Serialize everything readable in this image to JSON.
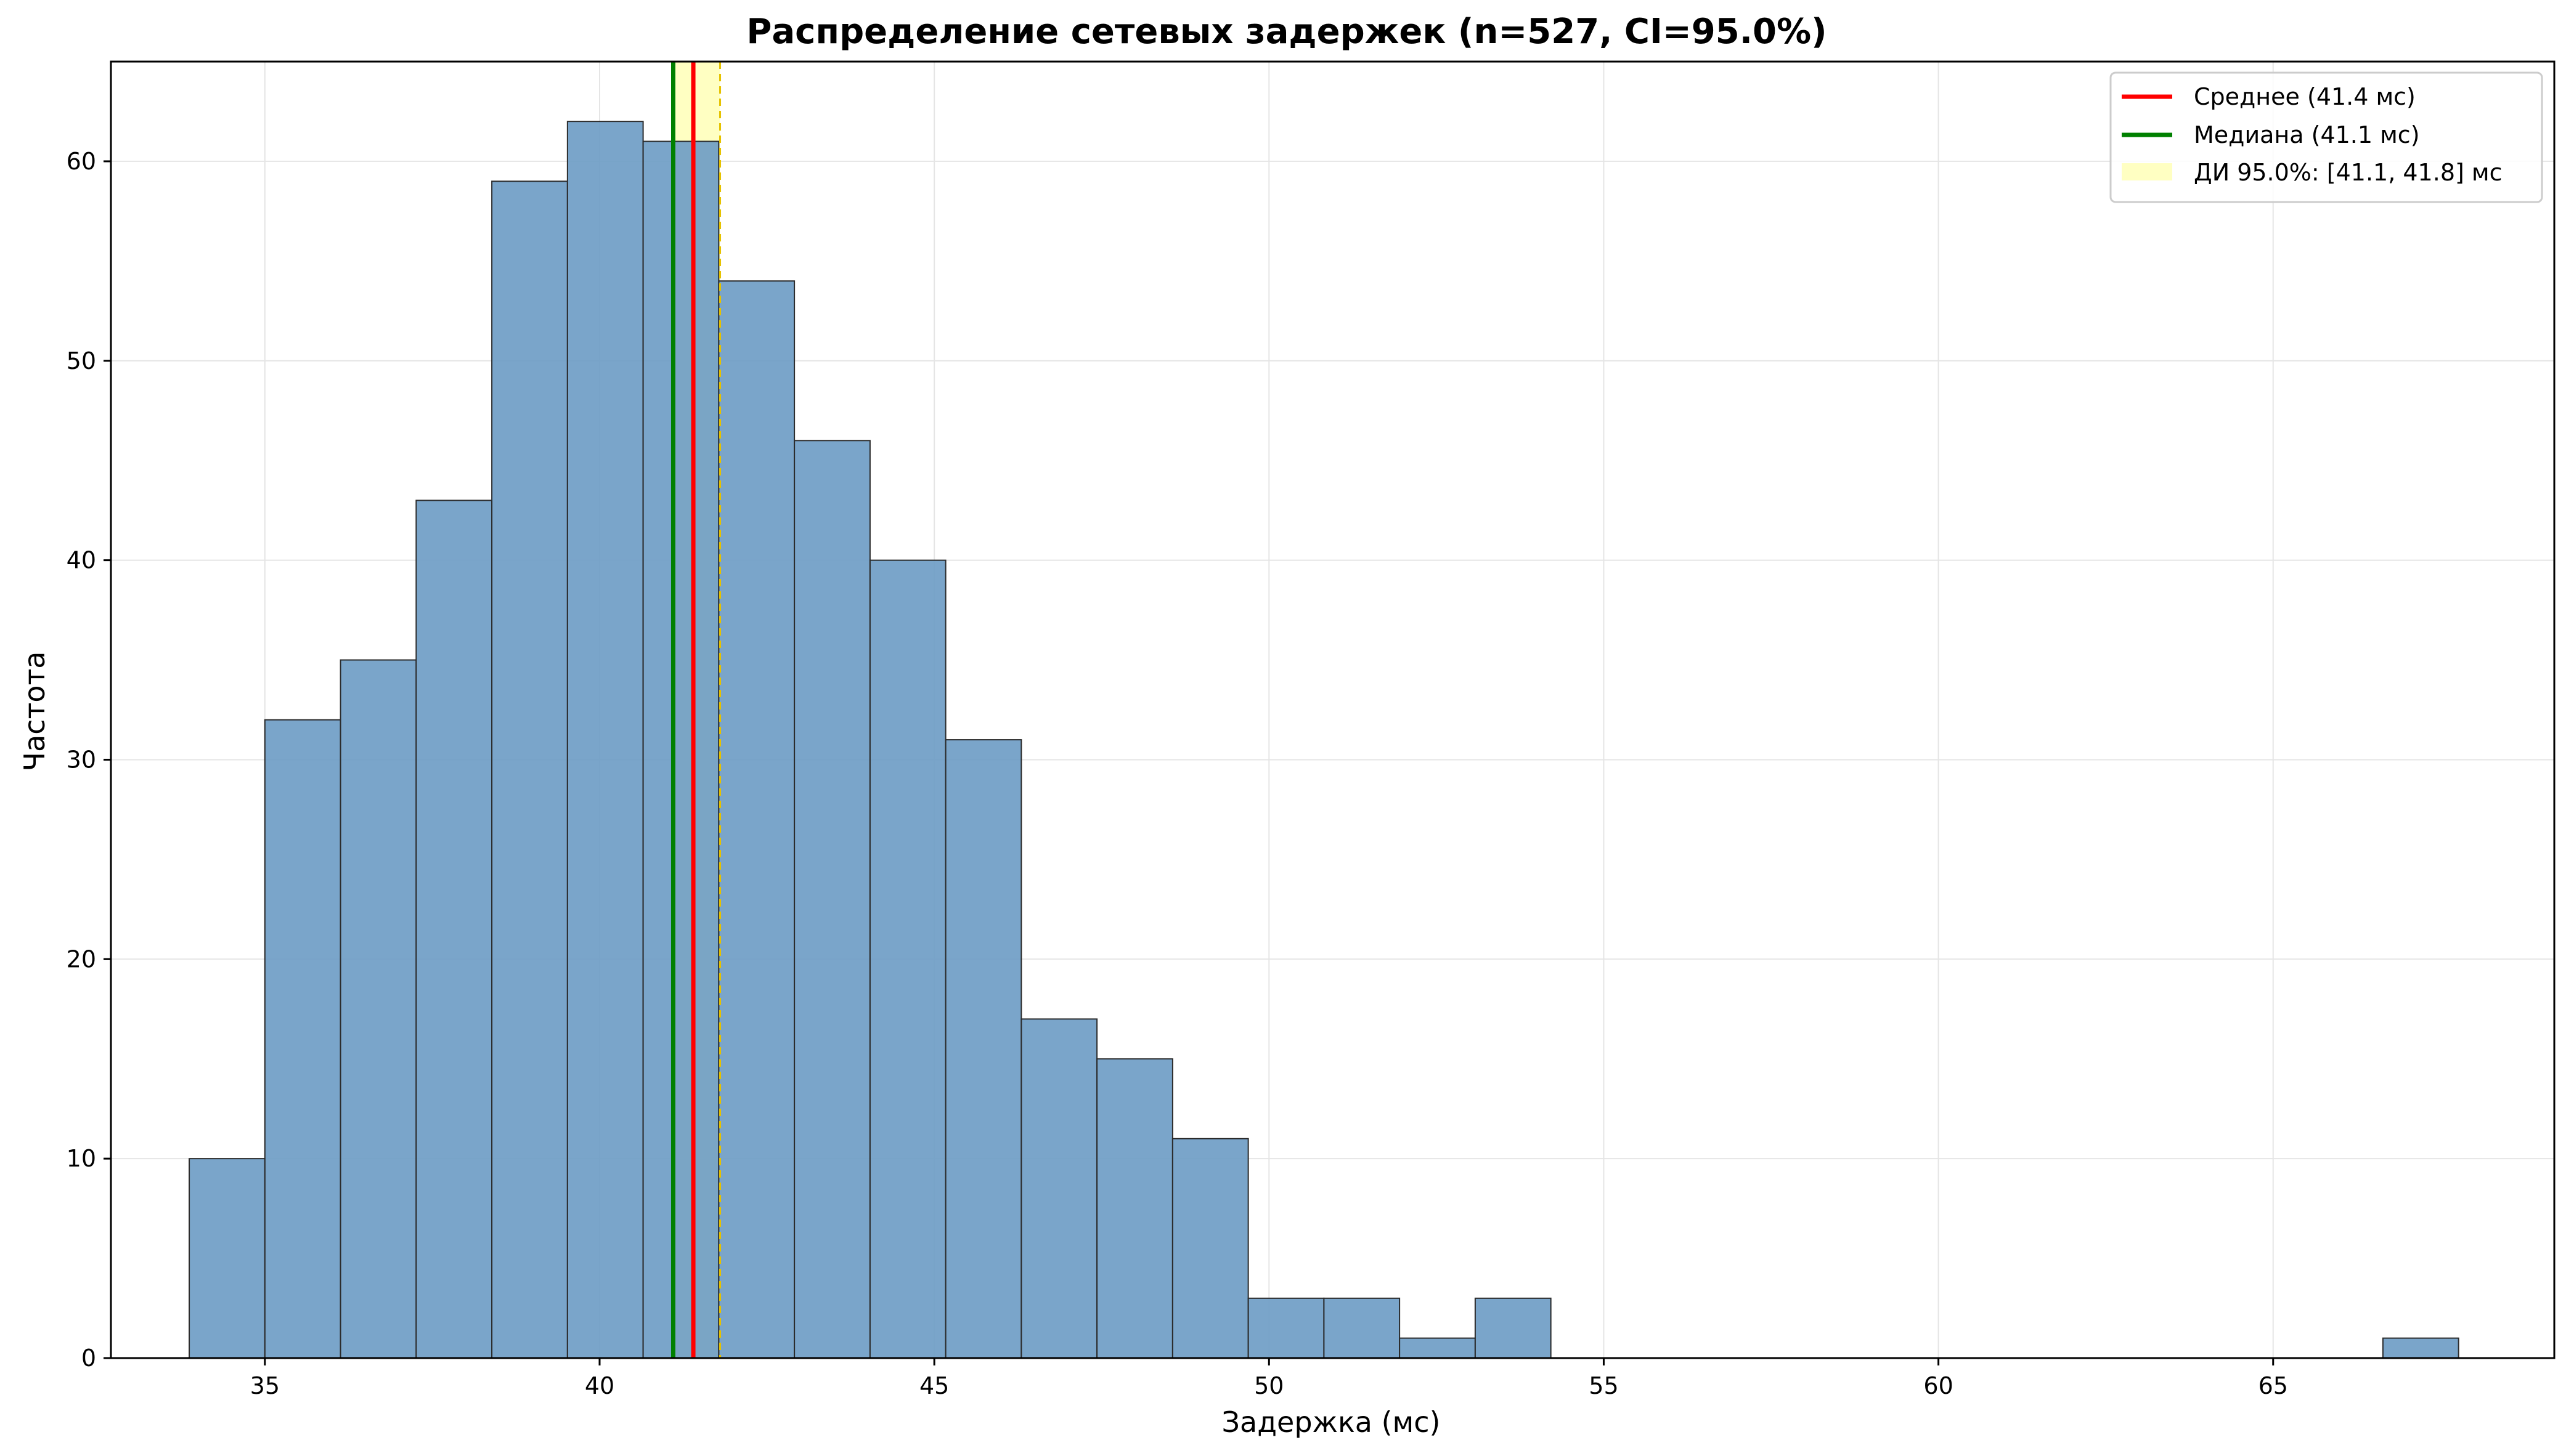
{
  "chart_data": {
    "type": "bar",
    "title": "Распределение сетевых задержек (n=527, CI=95.0%)",
    "xlabel": "Задержка (мс)",
    "ylabel": "Частота",
    "xlim": [
      32.7,
      69.2
    ],
    "ylim": [
      0,
      65
    ],
    "xticks": [
      35,
      40,
      45,
      50,
      55,
      60,
      65
    ],
    "yticks": [
      0,
      10,
      20,
      30,
      40,
      50,
      60
    ],
    "grid": true,
    "legend_position": "top-right",
    "bins": [
      {
        "x0": 33.87,
        "x1": 35.0,
        "count": 10
      },
      {
        "x0": 35.0,
        "x1": 36.13,
        "count": 32
      },
      {
        "x0": 36.13,
        "x1": 37.26,
        "count": 35
      },
      {
        "x0": 37.26,
        "x1": 38.39,
        "count": 43
      },
      {
        "x0": 38.39,
        "x1": 39.52,
        "count": 59
      },
      {
        "x0": 39.52,
        "x1": 40.65,
        "count": 62
      },
      {
        "x0": 40.65,
        "x1": 41.78,
        "count": 61
      },
      {
        "x0": 41.78,
        "x1": 42.91,
        "count": 54
      },
      {
        "x0": 42.91,
        "x1": 44.04,
        "count": 46
      },
      {
        "x0": 44.04,
        "x1": 45.17,
        "count": 40
      },
      {
        "x0": 45.17,
        "x1": 46.3,
        "count": 31
      },
      {
        "x0": 46.3,
        "x1": 47.43,
        "count": 17
      },
      {
        "x0": 47.43,
        "x1": 48.56,
        "count": 15
      },
      {
        "x0": 48.56,
        "x1": 49.69,
        "count": 11
      },
      {
        "x0": 49.69,
        "x1": 50.82,
        "count": 3
      },
      {
        "x0": 50.82,
        "x1": 51.95,
        "count": 3
      },
      {
        "x0": 51.95,
        "x1": 53.08,
        "count": 1
      },
      {
        "x0": 53.08,
        "x1": 54.21,
        "count": 3
      },
      {
        "x0": 66.64,
        "x1": 67.77,
        "count": 1
      }
    ],
    "mean": {
      "value": 41.4,
      "label": "Среднее (41.4 мс)",
      "color": "#ff0000"
    },
    "median": {
      "value": 41.1,
      "label": "Медиана (41.1 мс)",
      "color": "#008000"
    },
    "ci": {
      "low": 41.1,
      "high": 41.8,
      "label": "ДИ 95.0%: [41.1, 41.8] мс",
      "color": "#ffff99"
    },
    "bar_color": "#6f9dc6"
  }
}
